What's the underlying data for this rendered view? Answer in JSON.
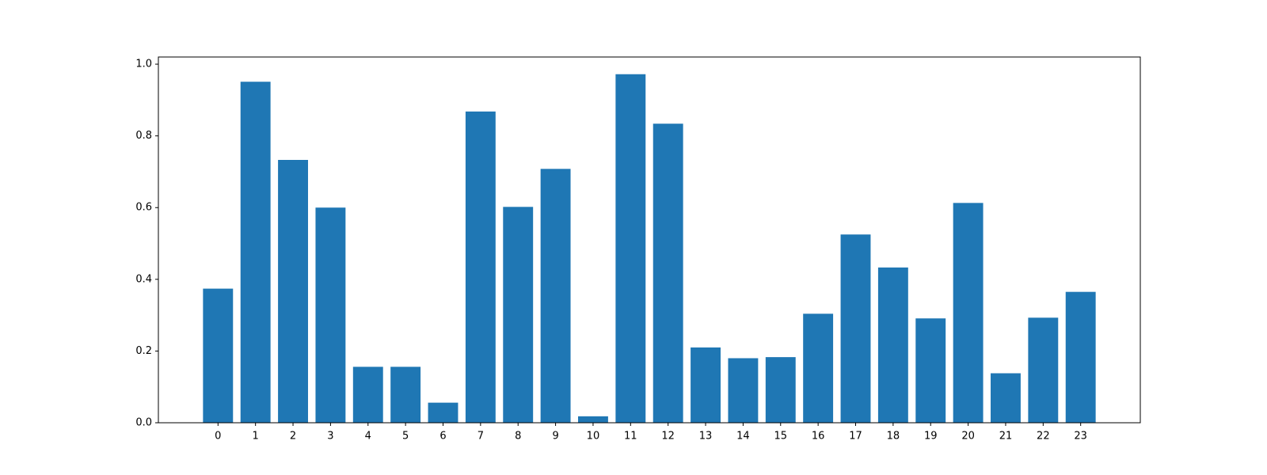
{
  "chart_data": {
    "type": "bar",
    "x": [
      0,
      1,
      2,
      3,
      4,
      5,
      6,
      7,
      8,
      9,
      10,
      11,
      12,
      13,
      14,
      15,
      16,
      17,
      18,
      19,
      20,
      21,
      22,
      23
    ],
    "values": [
      0.374,
      0.951,
      0.733,
      0.6,
      0.156,
      0.156,
      0.056,
      0.868,
      0.602,
      0.708,
      0.018,
      0.972,
      0.834,
      0.21,
      0.18,
      0.183,
      0.304,
      0.525,
      0.433,
      0.291,
      0.613,
      0.138,
      0.293,
      0.365
    ],
    "color": "#1f77b4",
    "xlim": [
      -1.59,
      24.59
    ],
    "xticks": [
      0,
      1,
      2,
      3,
      4,
      5,
      6,
      7,
      8,
      9,
      10,
      11,
      12,
      13,
      14,
      15,
      16,
      17,
      18,
      19,
      20,
      21,
      22,
      23
    ],
    "ylim": [
      0,
      1.02
    ],
    "yticks": [
      {
        "value": 0,
        "label": "0.0"
      },
      0.2,
      0.4,
      0.6,
      0.8,
      {
        "value": 1,
        "label": "1.0"
      }
    ],
    "grid": false
  }
}
